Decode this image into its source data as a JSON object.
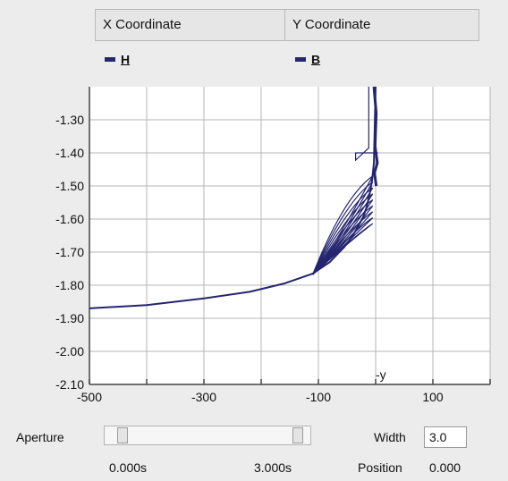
{
  "header": {
    "x_label": "X Coordinate",
    "y_label": "Y Coordinate"
  },
  "legend": {
    "h_label": "H",
    "b_label": "B"
  },
  "colors": {
    "series": "#252570",
    "grid": "#b4b4b4",
    "axis": "#444444"
  },
  "chart_data": {
    "type": "line",
    "title": "",
    "xlabel": "",
    "ylabel": "",
    "xlim": [
      -500,
      200
    ],
    "ylim": [
      -2.1,
      -1.2
    ],
    "x_ticks": [
      -500,
      -300,
      -100,
      100
    ],
    "y_ticks": [
      -1.3,
      -1.4,
      -1.5,
      -1.6,
      -1.7,
      -1.8,
      -1.9,
      -2.0,
      -2.1
    ],
    "y_tick_labels": [
      "-1.30",
      "-1.40",
      "-1.50",
      "-1.60",
      "-1.70",
      "-1.80",
      "-1.90",
      "-2.00",
      "-2.10"
    ],
    "annotations": [
      "-y"
    ],
    "series": [
      {
        "values": [
          [
            -500,
            -1.87
          ],
          [
            -400,
            -1.86
          ],
          [
            -300,
            -1.84
          ],
          [
            -220,
            -1.82
          ],
          [
            -160,
            -1.795
          ],
          [
            -110,
            -1.765
          ],
          [
            -80,
            -1.73
          ],
          [
            -55,
            -1.685
          ],
          [
            -40,
            -1.65
          ],
          [
            -30,
            -1.62
          ],
          [
            -22,
            -1.595
          ],
          [
            -15,
            -1.56
          ],
          [
            -10,
            -1.52
          ],
          [
            -6,
            -1.48
          ],
          [
            -3,
            -1.43
          ],
          [
            0,
            -1.2
          ]
        ]
      }
    ]
  },
  "controls": {
    "aperture_label": "Aperture",
    "width_label": "Width",
    "width_value": "3.0",
    "time_start": "0.000s",
    "time_end": "3.000s",
    "position_label": "Position",
    "position_value": "0.000"
  }
}
